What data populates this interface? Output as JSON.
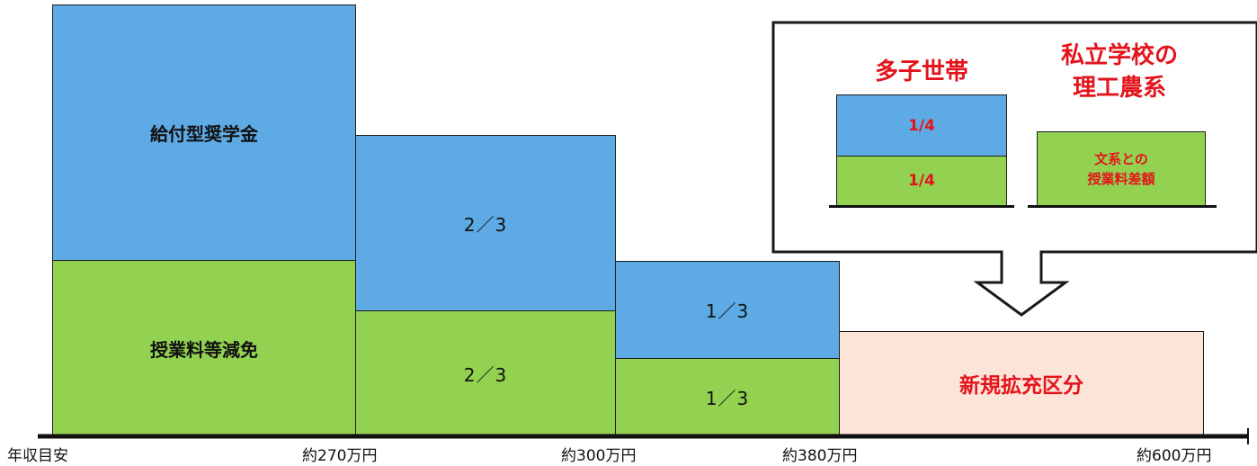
{
  "columns": {
    "col1": {
      "upper_label": "給付型奨学金",
      "lower_label": "授業料等減免"
    },
    "col2": {
      "upper_label": "2／3",
      "lower_label": "2／3"
    },
    "col3": {
      "upper_label": "1／3",
      "lower_label": "1／3"
    },
    "new_category": {
      "label": "新規拡充区分"
    }
  },
  "axis": {
    "labels": [
      "年収目安",
      "約270万円",
      "約300万円",
      "約380万円",
      "約600万円"
    ]
  },
  "callout": {
    "multi_child": {
      "title": "多子世帯",
      "upper_value": "1/4",
      "lower_value": "1/4"
    },
    "private_science": {
      "title_line1": "私立学校の",
      "title_line2": "理工農系",
      "box_line1": "文系との",
      "box_line2": "授業料差額"
    }
  },
  "colors": {
    "blue": "#5eaae4",
    "green": "#93d150",
    "pink": "#fde4d8",
    "red": "#e3141c"
  }
}
